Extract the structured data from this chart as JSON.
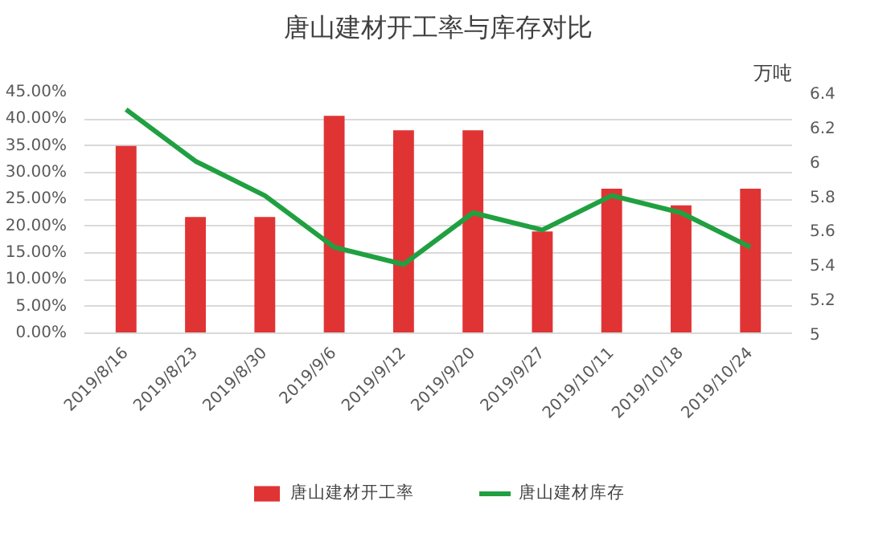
{
  "chart_data": {
    "type": "bar",
    "title": "唐山建材开工率与库存对比",
    "y2label": "万吨",
    "categories": [
      "2019/8/16",
      "2019/8/23",
      "2019/8/30",
      "2019/9/6",
      "2019/9/12",
      "2019/9/20",
      "2019/9/27",
      "2019/10/11",
      "2019/10/18",
      "2019/10/24"
    ],
    "series": [
      {
        "name": "唐山建材开工率",
        "color": "#e03434",
        "values": [
          35.0,
          21.7,
          21.7,
          40.6,
          37.9,
          37.9,
          19.0,
          27.0,
          23.9,
          27.0
        ]
      },
      {
        "name": "唐山建材库存",
        "type": "line",
        "axis": "y2",
        "color": "#20a040",
        "values": [
          6.3,
          6.0,
          5.8,
          5.5,
          5.4,
          5.7,
          5.6,
          5.8,
          5.7,
          5.5
        ]
      }
    ],
    "ylim": [
      0,
      45
    ],
    "yticks": [
      {
        "value": 0,
        "label": "0.00%"
      },
      {
        "value": 5,
        "label": "5.00%"
      },
      {
        "value": 10,
        "label": "10.00%"
      },
      {
        "value": 15,
        "label": "15.00%"
      },
      {
        "value": 20,
        "label": "20.00%"
      },
      {
        "value": 25,
        "label": "25.00%"
      },
      {
        "value": 30,
        "label": "30.00%"
      },
      {
        "value": 35,
        "label": "35.00%"
      },
      {
        "value": 40,
        "label": "40.00%"
      },
      {
        "value": 45,
        "label": "45.00%"
      }
    ],
    "y2lim": [
      5,
      6.4
    ],
    "y2ticks": [
      5,
      5.2,
      5.4,
      5.6,
      5.8,
      6,
      6.2,
      6.4
    ],
    "grid": "y",
    "legend": "bottom",
    "marker": "none",
    "line_style": "solid"
  }
}
